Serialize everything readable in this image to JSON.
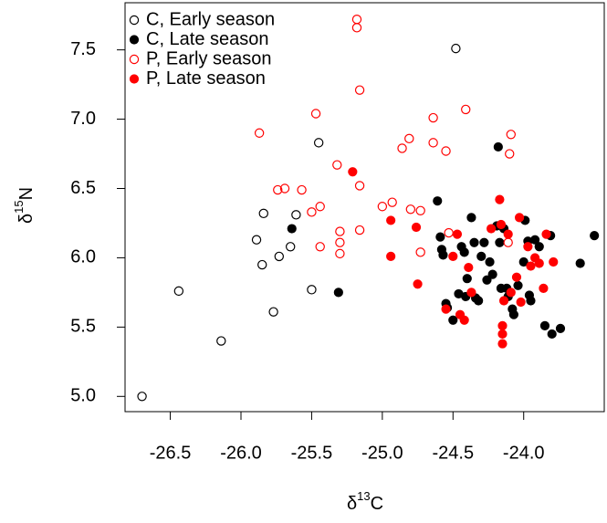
{
  "chart_data": {
    "type": "scatter",
    "x_label": "δ13C",
    "y_label": "δ15N",
    "xlim": [
      -26.82,
      -23.43
    ],
    "ylim": [
      4.89,
      7.84
    ],
    "xticks": [
      -26.5,
      {
        "value": -26.0,
        "label": "-26.0"
      },
      -25.5,
      {
        "value": -25.0,
        "label": "-25.0"
      },
      -24.5,
      {
        "value": -24.0,
        "label": "-24.0"
      }
    ],
    "yticks": [
      {
        "value": 5.0,
        "label": "5.0"
      },
      5.5,
      {
        "value": 6.0,
        "label": "6.0"
      },
      6.5,
      {
        "value": 7.0,
        "label": "7.0"
      },
      7.5
    ],
    "legend": "top-left",
    "series": [
      {
        "name": "C, Early season",
        "color": "#000000",
        "marker": "open",
        "x": [
          -26.7,
          -26.44,
          -26.14,
          -25.89,
          -25.84,
          -25.85,
          -25.77,
          -25.73,
          -25.65,
          -25.61,
          -25.5,
          -25.45,
          -24.48
        ],
        "values": [
          5.0,
          5.76,
          5.4,
          6.13,
          6.32,
          5.95,
          5.61,
          6.01,
          6.08,
          6.31,
          5.77,
          6.83,
          7.51
        ]
      },
      {
        "name": "C, Late season",
        "color": "#000000",
        "marker": "filled",
        "x": [
          -25.64,
          -25.31,
          -24.61,
          -24.59,
          -24.58,
          -24.57,
          -24.55,
          -24.54,
          -24.5,
          -24.46,
          -24.44,
          -24.42,
          -24.41,
          -24.4,
          -24.37,
          -24.35,
          -24.34,
          -24.32,
          -24.3,
          -24.28,
          -24.26,
          -24.24,
          -24.22,
          -24.19,
          -24.17,
          -24.16,
          -24.14,
          -24.12,
          -24.11,
          -24.08,
          -24.07,
          -24.04,
          -24.0,
          -23.99,
          -23.97,
          -23.96,
          -23.95,
          -23.92,
          -23.89,
          -23.85,
          -23.81,
          -23.8,
          -23.74,
          -23.6,
          -23.5,
          -24.18
        ],
        "values": [
          6.21,
          5.75,
          6.41,
          6.15,
          6.06,
          6.02,
          5.67,
          5.64,
          5.55,
          5.74,
          6.08,
          6.04,
          5.72,
          5.85,
          6.29,
          6.11,
          5.71,
          5.69,
          6.01,
          6.11,
          5.84,
          5.97,
          5.88,
          6.23,
          6.11,
          5.78,
          6.21,
          5.78,
          5.72,
          5.63,
          5.59,
          5.8,
          5.97,
          6.27,
          6.12,
          5.73,
          5.69,
          6.13,
          6.08,
          5.51,
          6.16,
          5.45,
          5.49,
          5.96,
          6.16,
          6.8
        ]
      },
      {
        "name": "P, Early season",
        "color": "#ff0000",
        "marker": "open",
        "x": [
          -25.18,
          -25.18,
          -25.16,
          -25.87,
          -25.47,
          -25.32,
          -25.74,
          -25.69,
          -25.57,
          -25.5,
          -25.44,
          -25.44,
          -25.3,
          -25.3,
          -25.3,
          -25.16,
          -25.16,
          -25.0,
          -24.93,
          -24.86,
          -24.81,
          -24.8,
          -24.73,
          -24.73,
          -24.64,
          -24.64,
          -24.55,
          -24.53,
          -24.41,
          -24.11,
          -24.09,
          -24.1
        ],
        "values": [
          7.72,
          7.66,
          7.21,
          6.9,
          7.04,
          6.67,
          6.49,
          6.5,
          6.49,
          6.33,
          6.37,
          6.08,
          6.19,
          6.11,
          6.03,
          6.52,
          6.2,
          6.37,
          6.4,
          6.79,
          6.86,
          6.35,
          6.34,
          6.04,
          7.01,
          6.83,
          6.77,
          6.18,
          7.07,
          6.11,
          6.89,
          6.75
        ]
      },
      {
        "name": "P, Late season",
        "color": "#ff0000",
        "marker": "filled",
        "x": [
          -25.21,
          -24.94,
          -24.94,
          -24.76,
          -24.75,
          -24.55,
          -24.5,
          -24.47,
          -24.45,
          -24.42,
          -24.39,
          -24.37,
          -24.23,
          -24.17,
          -24.16,
          -24.14,
          -24.15,
          -24.15,
          -24.15,
          -24.11,
          -24.09,
          -24.05,
          -24.03,
          -24.02,
          -23.97,
          -23.95,
          -23.92,
          -23.89,
          -23.86,
          -23.84,
          -23.79
        ],
        "values": [
          6.62,
          6.27,
          6.01,
          6.22,
          5.81,
          5.63,
          6.01,
          6.17,
          5.59,
          5.55,
          5.93,
          5.75,
          6.21,
          6.42,
          6.24,
          5.69,
          5.51,
          5.45,
          5.38,
          6.17,
          5.75,
          5.86,
          6.29,
          5.68,
          6.08,
          5.94,
          6.0,
          5.96,
          5.78,
          6.17,
          5.97
        ]
      }
    ]
  }
}
